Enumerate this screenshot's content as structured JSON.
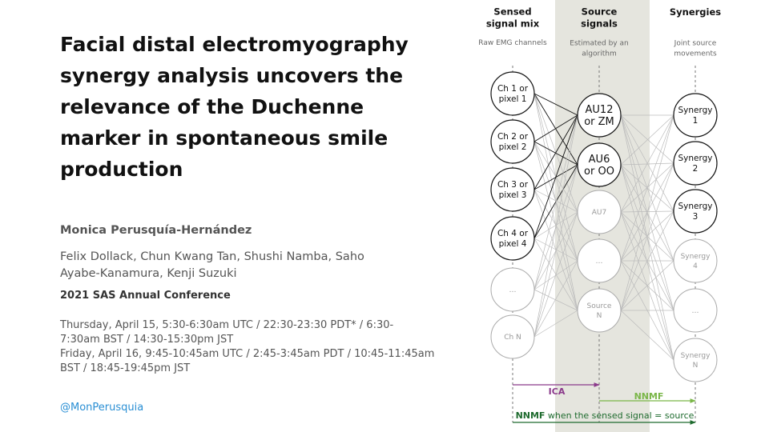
{
  "paper": {
    "title_lines": [
      "Facial distal electromyography",
      "synergy analysis uncovers the",
      "relevance of the Duchenne",
      "marker in spontaneous smile",
      "production"
    ],
    "main_author": "Monica Perusquía-Hernández",
    "coauthor_lines": [
      "Felix Dollack, Chun Kwang Tan, Shushi Namba, Saho",
      "Ayabe-Kanamura, Kenji Suzuki"
    ],
    "conference": "2021 SAS Annual Conference",
    "schedule_lines": [
      "Thursday, April 15,  5:30-6:30am UTC /  22:30-23:30 PDT* / 6:30-",
      "7:30am BST / 14:30-15:30pm JST",
      "Friday, April 16, 9:45-10:45am UTC / 2:45-3:45am PDT / 10:45-11:45am",
      "BST / 18:45-19:45pm JST"
    ],
    "handle": "@MonPerusquia"
  },
  "diagram": {
    "colors": {
      "band": "#e5e5de",
      "ica": "#8b3a8b",
      "nnmf": "#7ab648",
      "nnmf_dark": "#1e6b2e",
      "strong": "#111111",
      "faint": "#bbbbbb"
    },
    "columns": [
      {
        "heading": [
          "Sensed",
          "signal mix"
        ],
        "sub": [
          "Raw EMG channels"
        ]
      },
      {
        "heading": [
          "Source",
          "signals"
        ],
        "sub": [
          "Estimated by an",
          "algorithm"
        ]
      },
      {
        "heading": [
          "Synergies"
        ],
        "sub": [
          "Joint source",
          "movements"
        ]
      }
    ],
    "channels": [
      {
        "label": [
          "Ch 1 or",
          "pixel 1"
        ],
        "strong": true
      },
      {
        "label": [
          "Ch 2 or",
          "pixel 2"
        ],
        "strong": true
      },
      {
        "label": [
          "Ch 3 or",
          "pixel 3"
        ],
        "strong": true
      },
      {
        "label": [
          "Ch 4 or",
          "pixel 4"
        ],
        "strong": true
      },
      {
        "label": [
          "…"
        ],
        "strong": false
      },
      {
        "label": [
          "Ch N"
        ],
        "strong": false
      }
    ],
    "sources": [
      {
        "label": [
          "AU12",
          "or ZM"
        ],
        "strong": true,
        "big": true
      },
      {
        "label": [
          "AU6",
          "or OO"
        ],
        "strong": true,
        "big": true
      },
      {
        "label": [
          "AU7"
        ],
        "strong": false
      },
      {
        "label": [
          "…"
        ],
        "strong": false
      },
      {
        "label": [
          "Source",
          "N"
        ],
        "strong": false
      }
    ],
    "synergies": [
      {
        "label": [
          "Synergy",
          "1"
        ],
        "strong": true
      },
      {
        "label": [
          "Synergy",
          "2"
        ],
        "strong": true
      },
      {
        "label": [
          "Synergy",
          "3"
        ],
        "strong": true
      },
      {
        "label": [
          "Synergy",
          "4"
        ],
        "strong": false
      },
      {
        "label": [
          "…"
        ],
        "strong": false
      },
      {
        "label": [
          "Synergy",
          "N"
        ],
        "strong": false
      }
    ],
    "arrows": {
      "ica": "ICA",
      "nnmf": "NNMF",
      "bottom_bold": "NNMF",
      "bottom_rest": " when the sensed signal = source"
    }
  }
}
